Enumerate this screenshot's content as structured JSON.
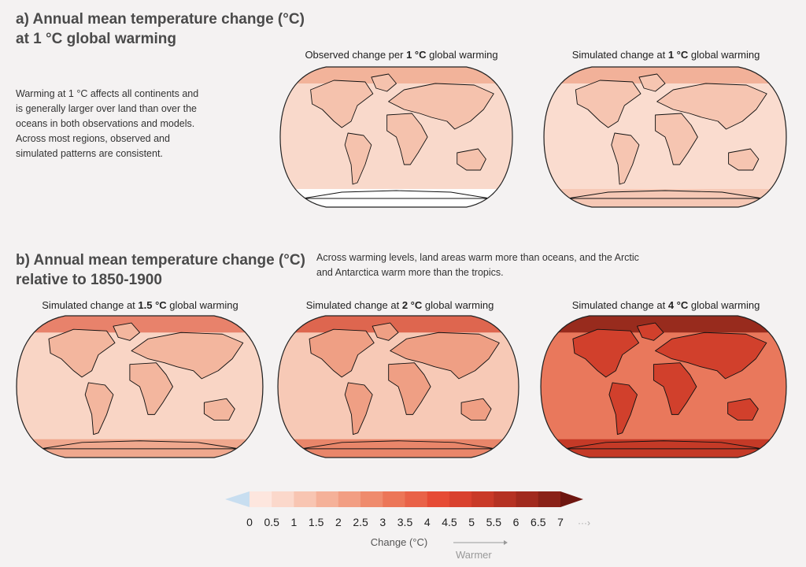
{
  "panel_a": {
    "heading_line1": "a) Annual mean temperature change (°C)",
    "heading_line2": "at 1 °C global warming",
    "description": [
      "Warming at 1 °C affects all continents and",
      "is generally larger over land than over the",
      "oceans in both observations and models.",
      "Across most regions, observed and",
      "simulated patterns are consistent."
    ],
    "maps": [
      {
        "title_prefix": "Observed change per ",
        "title_bold": "1 °C",
        "title_suffix": " global warming",
        "ocean_color": "#f9d9cb",
        "land_color": "#f5c2ad",
        "arctic_color": "#f1ab92",
        "antarctic_color": "#ffffff"
      },
      {
        "title_prefix": "Simulated change at ",
        "title_bold": "1 °C",
        "title_suffix": " global warming",
        "ocean_color": "#fadccf",
        "land_color": "#f6c5b1",
        "arctic_color": "#f0a98f",
        "antarctic_color": "#f6c8b5"
      }
    ]
  },
  "panel_b": {
    "heading_line1": "b) Annual mean temperature change (°C)",
    "heading_line2": "relative to 1850-1900",
    "description": [
      "Across warming levels, land areas warm more than oceans, and the Arctic",
      "and Antarctica warm more than the tropics."
    ],
    "maps": [
      {
        "title_prefix": "Simulated change at ",
        "title_bold": "1.5 °C",
        "title_suffix": " global warming",
        "ocean_color": "#f9d5c5",
        "land_color": "#f3b69e",
        "arctic_color": "#e5735a",
        "antarctic_color": "#f0a88e"
      },
      {
        "title_prefix": "Simulated change at ",
        "title_bold": "2 °C",
        "title_suffix": " global warming",
        "ocean_color": "#f7c9b6",
        "land_color": "#ef9f84",
        "arctic_color": "#d9553d",
        "antarctic_color": "#e9866a"
      },
      {
        "title_prefix": "Simulated change at ",
        "title_bold": "4 °C",
        "title_suffix": " global warming",
        "ocean_color": "#e9785c",
        "land_color": "#d1402c",
        "arctic_color": "#8a1d12",
        "antarctic_color": "#c53a27"
      }
    ]
  },
  "colorbar": {
    "ticks": [
      "0",
      "0.5",
      "1",
      "1.5",
      "2",
      "2.5",
      "3",
      "3.5",
      "4",
      "4.5",
      "5",
      "5.5",
      "6",
      "6.5",
      "7"
    ],
    "colors": [
      "#fde6de",
      "#fbd8cb",
      "#f8c5b2",
      "#f5b199",
      "#f29e83",
      "#ef8b6d",
      "#ec7658",
      "#e96248",
      "#e64b35",
      "#d9412e",
      "#c93a28",
      "#b53223",
      "#a12a1e",
      "#8a2218"
    ],
    "below_color": "#c8def0",
    "above_color": "#6e1610",
    "more_symbol": "···›",
    "label": "Change (°C)",
    "direction_label": "Warmer",
    "range": [
      0,
      7
    ]
  }
}
